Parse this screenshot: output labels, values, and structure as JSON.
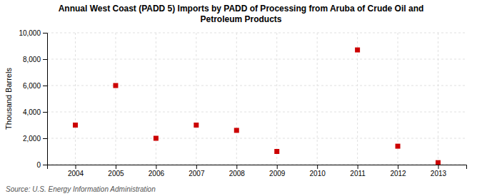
{
  "chart_data": {
    "type": "scatter",
    "title": "Annual West Coast (PADD 5) Imports by PADD of Processing from Aruba of Crude Oil and\nPetroleum Products",
    "ylabel": "Thousand Barrels",
    "annotations": [
      "Source: U.S. Energy Information Administration"
    ],
    "x": [
      2004,
      2005,
      2006,
      2007,
      2008,
      2009,
      2011,
      2012,
      2013
    ],
    "values": [
      3000,
      6000,
      2000,
      3000,
      2600,
      1000,
      8700,
      1400,
      150
    ],
    "color": "#cc0000",
    "marker": "square",
    "xlim": [
      2003.3,
      2013.7
    ],
    "xticks": [
      2004,
      2005,
      2006,
      2007,
      2008,
      2009,
      2010,
      2011,
      2012,
      2013
    ],
    "ylim": [
      0,
      10000
    ],
    "yticks": [
      0,
      {
        "value": 2000,
        "label": "2,000"
      },
      {
        "value": 4000,
        "label": "4,000"
      },
      {
        "value": 6000,
        "label": "6,000"
      },
      {
        "value": 8000,
        "label": "8,000"
      },
      {
        "value": 10000,
        "label": "10,000"
      }
    ],
    "grid": true
  }
}
